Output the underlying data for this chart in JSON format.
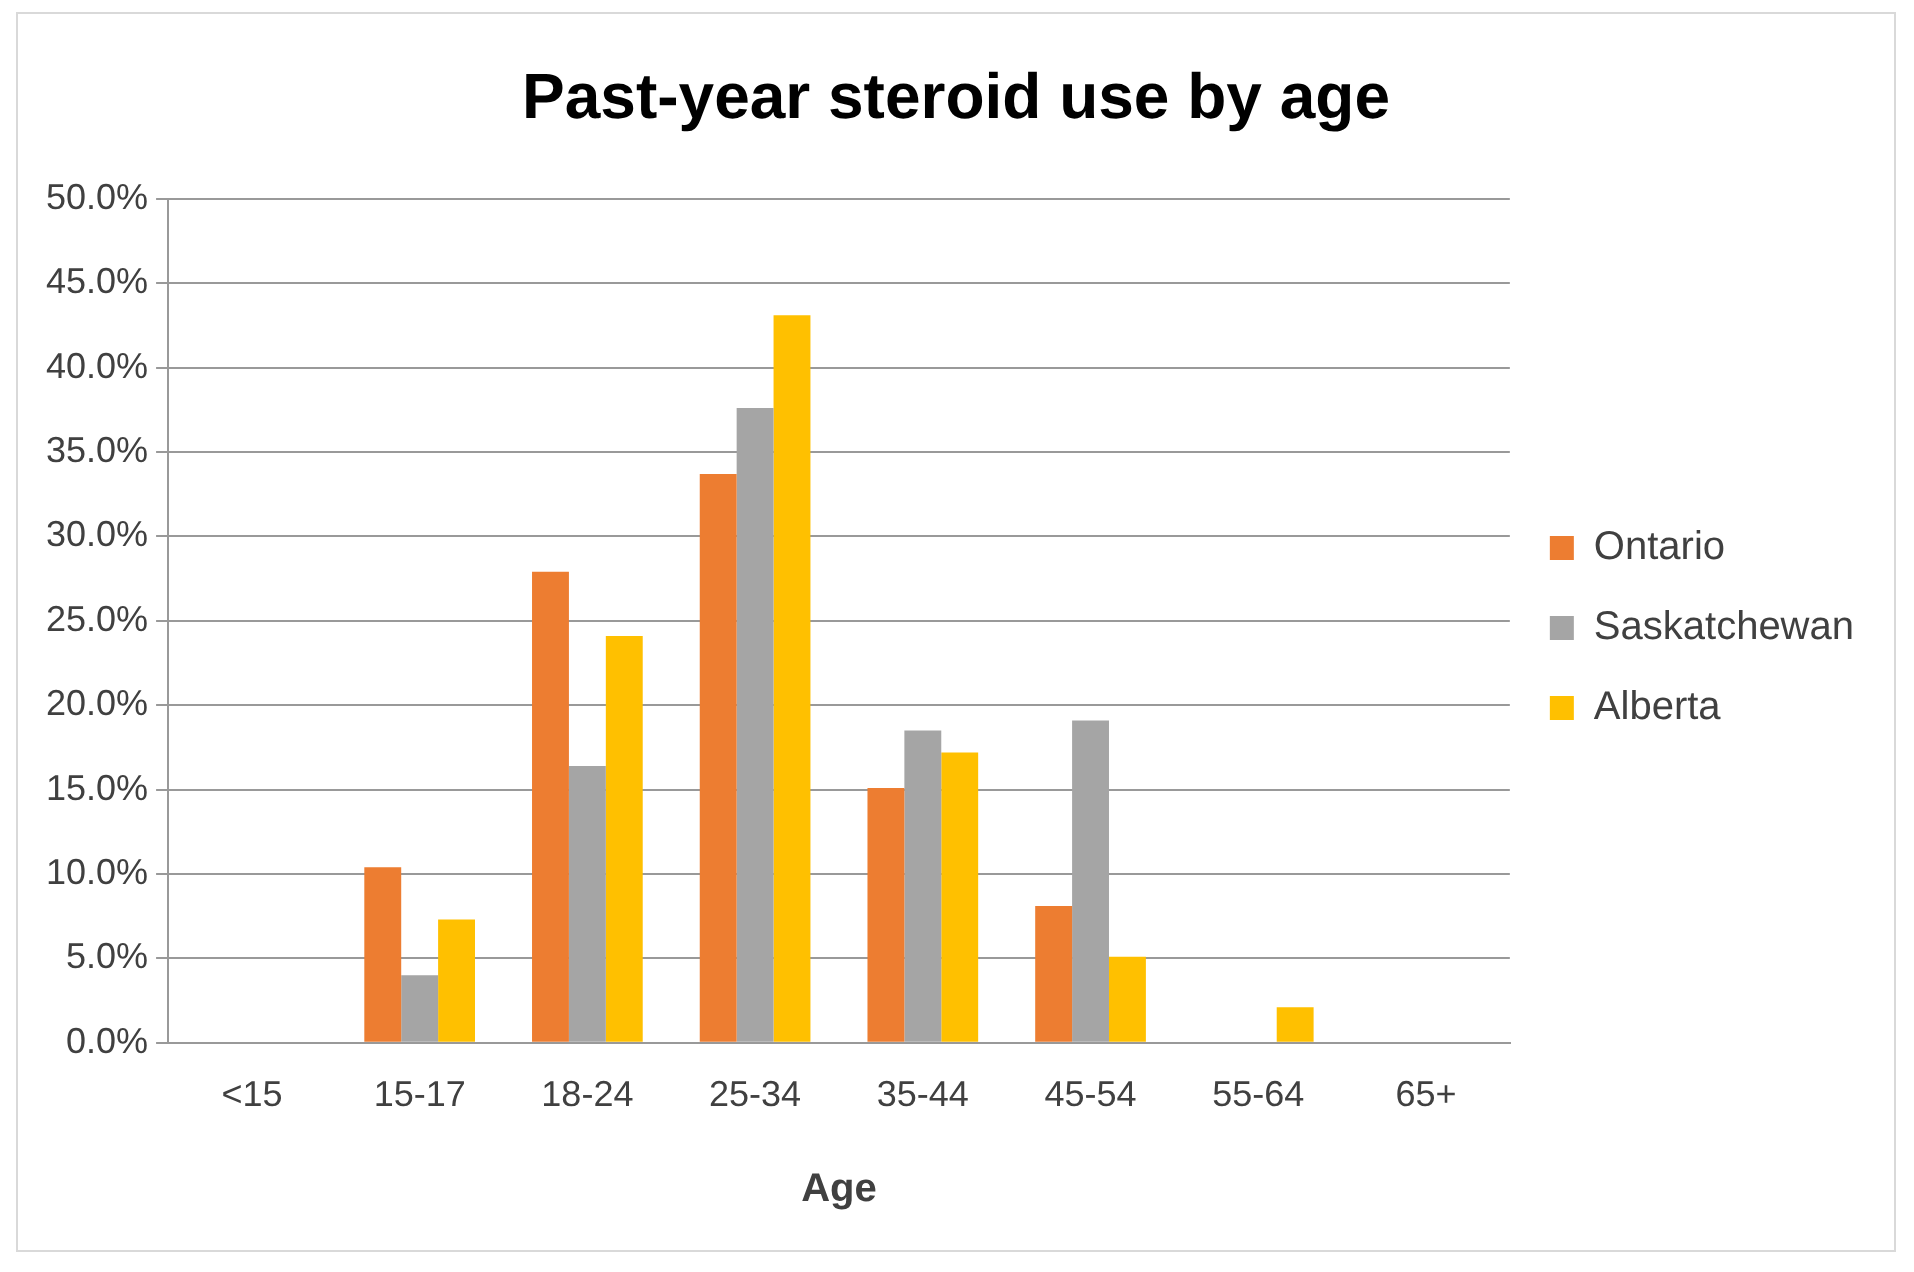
{
  "chart_data": {
    "type": "bar",
    "title": "Past-year steroid use by age",
    "xlabel": "Age",
    "categories": [
      "<15",
      "15-17",
      "18-24",
      "25-34",
      "35-44",
      "45-54",
      "55-64",
      "65+"
    ],
    "series": [
      {
        "name": "Ontario",
        "color": "#ed7d31",
        "values": [
          0,
          10.4,
          27.9,
          33.7,
          15.1,
          8.1,
          0,
          0
        ]
      },
      {
        "name": "Saskatchewan",
        "color": "#a5a5a5",
        "values": [
          0,
          4.0,
          16.4,
          37.6,
          18.5,
          19.1,
          0,
          0
        ]
      },
      {
        "name": "Alberta",
        "color": "#ffc000",
        "values": [
          0,
          7.3,
          24.1,
          43.1,
          17.2,
          5.1,
          2.1,
          0
        ]
      }
    ],
    "ylim": [
      0,
      50
    ],
    "yticks": [
      {
        "value": 0,
        "label": "0.0%"
      },
      {
        "value": 5,
        "label": "5.0%"
      },
      {
        "value": 10,
        "label": "10.0%"
      },
      {
        "value": 15,
        "label": "15.0%"
      },
      {
        "value": 20,
        "label": "20.0%"
      },
      {
        "value": 25,
        "label": "25.0%"
      },
      {
        "value": 30,
        "label": "30.0%"
      },
      {
        "value": 35,
        "label": "35.0%"
      },
      {
        "value": 40,
        "label": "40.0%"
      },
      {
        "value": 45,
        "label": "45.0%"
      },
      {
        "value": 50,
        "label": "50.0%"
      }
    ],
    "grid": "y",
    "legend": "right"
  }
}
